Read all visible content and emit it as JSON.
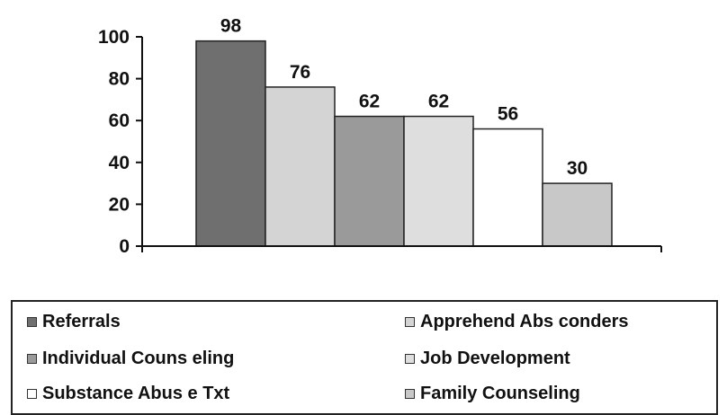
{
  "chart_data": {
    "type": "bar",
    "categories": [
      "Referrals",
      "Apprehend Absconders",
      "Individual Counseling",
      "Job Development",
      "Substance Abuse Txt",
      "Family Counseling"
    ],
    "values": [
      98,
      76,
      62,
      62,
      56,
      30
    ],
    "data_labels": [
      "98",
      "76",
      "62",
      "62",
      "56",
      "30"
    ],
    "colors": [
      "#6f6f6f",
      "#d4d4d4",
      "#9a9a9a",
      "#dedede",
      "#ffffff",
      "#c8c8c8"
    ],
    "ylim": [
      0,
      100
    ],
    "yticks": [
      0,
      20,
      40,
      60,
      80,
      100
    ],
    "ytick_labels": [
      "0",
      "20",
      "40",
      "60",
      "80",
      "100"
    ],
    "grid": false,
    "legend_position": "bottom",
    "title": "",
    "xlabel": "",
    "ylabel": ""
  },
  "legend": {
    "items": [
      {
        "label": "Referrals",
        "color": "#6f6f6f"
      },
      {
        "label": "Apprehend Abs conders",
        "color": "#d4d4d4"
      },
      {
        "label": "Individual Couns eling",
        "color": "#9a9a9a"
      },
      {
        "label": "Job Development",
        "color": "#dedede"
      },
      {
        "label": "Substance Abus e Txt",
        "color": "#ffffff"
      },
      {
        "label": "Family Counseling",
        "color": "#c8c8c8"
      }
    ]
  }
}
